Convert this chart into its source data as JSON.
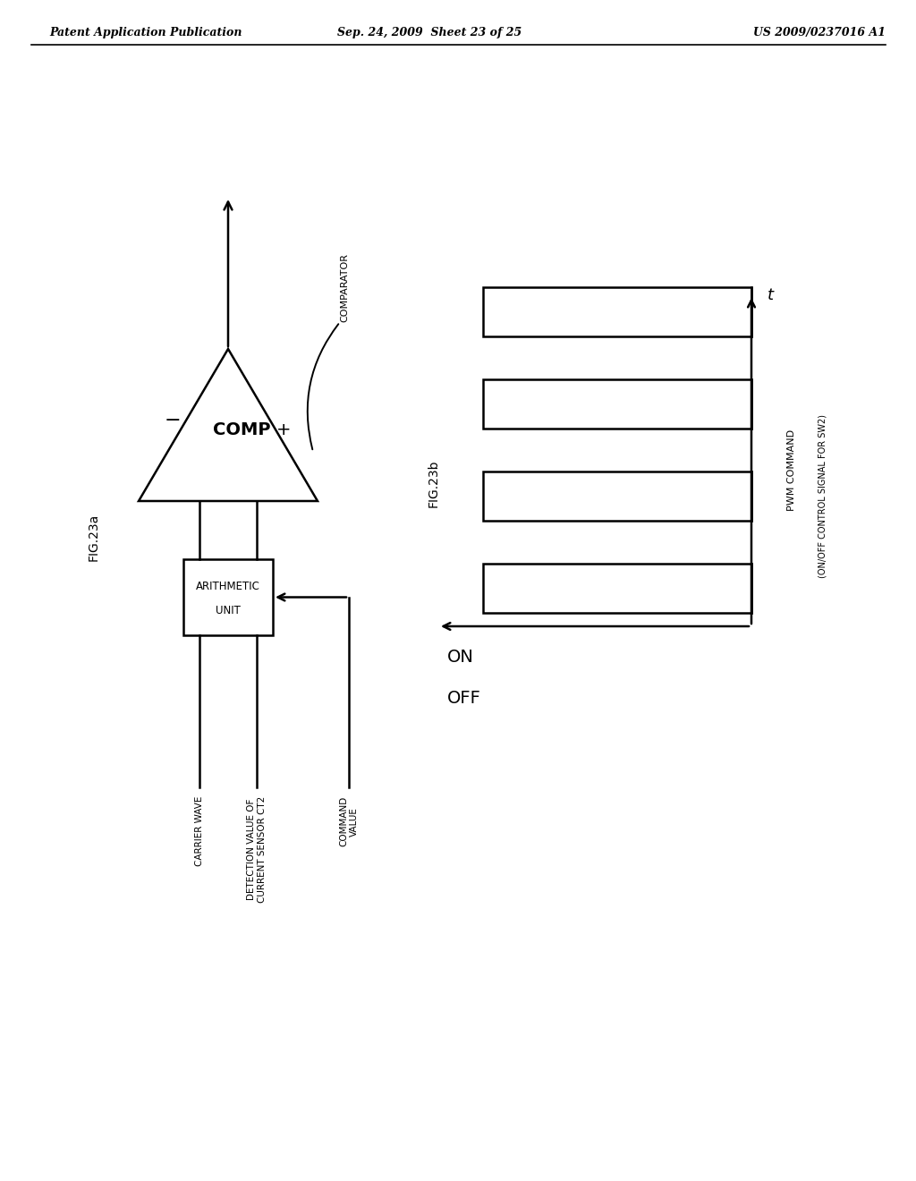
{
  "bg_color": "#ffffff",
  "header_left": "Patent Application Publication",
  "header_center": "Sep. 24, 2009  Sheet 23 of 25",
  "header_right": "US 2009/0237016 A1",
  "fig23a_label": "FIG.23a",
  "fig23b_label": "FIG.23b",
  "comp_label": "COMP",
  "comparator_label": "COMPARATOR",
  "arith_label1": "ARITHMETIC",
  "arith_label2": "UNIT",
  "carrier_wave_label": "CARRIER WAVE",
  "detection_label1": "DETECTION VALUE OF",
  "detection_label2": "CURRENT SENSOR CT2",
  "command_label1": "COMMAND",
  "command_label2": "VALUE",
  "on_label": "ON",
  "off_label": "OFF",
  "t_label": "t",
  "pwm_label1": "PWM COMMAND",
  "pwm_label2": "(ON/OFF CONTROL SIGNAL FOR SW2)"
}
